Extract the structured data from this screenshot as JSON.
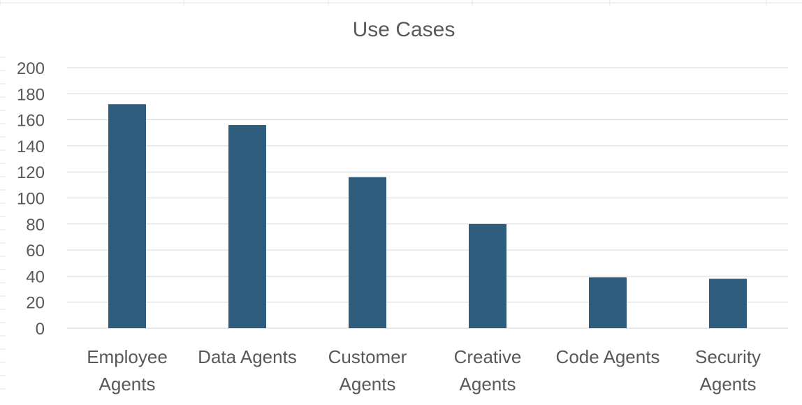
{
  "chart_data": {
    "type": "bar",
    "title": "Use Cases",
    "categories": [
      [
        "Employee",
        "Agents"
      ],
      [
        "Data Agents"
      ],
      [
        "Customer",
        "Agents"
      ],
      [
        "Creative",
        "Agents"
      ],
      [
        "Code Agents"
      ],
      [
        "Security",
        "Agents"
      ]
    ],
    "values": [
      172,
      156,
      116,
      80,
      39,
      38
    ],
    "xlabel": "",
    "ylabel": "",
    "ylim": [
      0,
      200
    ],
    "yticks": [
      "0",
      "20",
      "40",
      "60",
      "80",
      "100",
      "120",
      "140",
      "160",
      "180",
      "200"
    ],
    "grid": true,
    "legend": "none",
    "bar_color": "#2E5C7D",
    "grid_color": "#D9D9D9",
    "text_color": "#595959"
  }
}
